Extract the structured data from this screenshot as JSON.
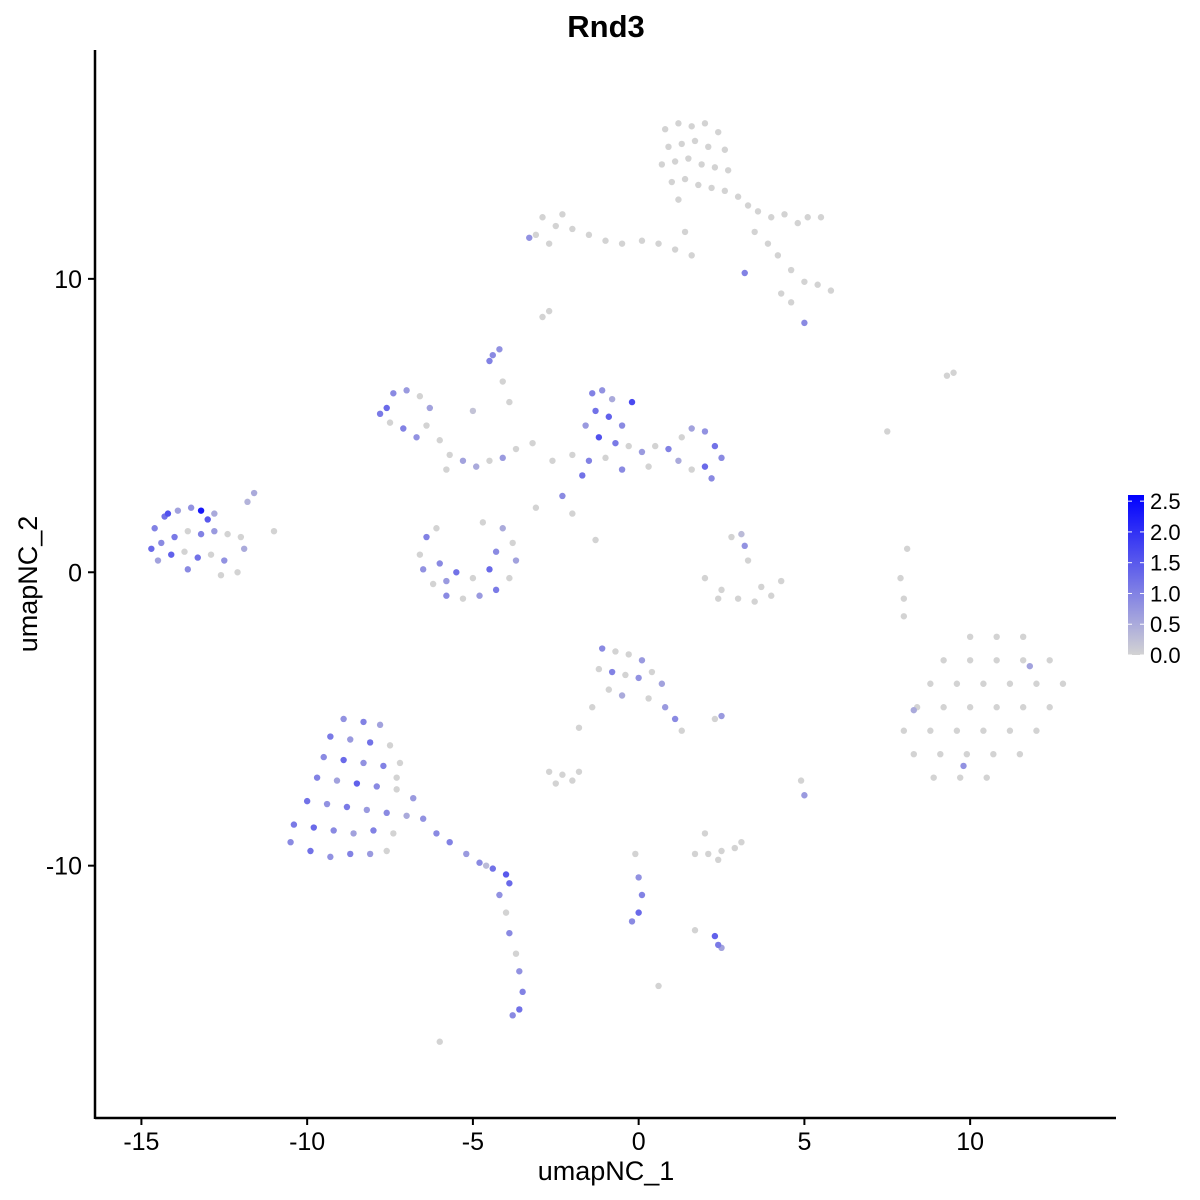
{
  "chart_data": {
    "type": "scatter",
    "title": "Rnd3",
    "xlabel": "umapNC_1",
    "ylabel": "umapNC_2",
    "xlim": [
      -16.4,
      14.4
    ],
    "ylim": [
      -18.6,
      17.8
    ],
    "x_ticks": [
      -15,
      -10,
      -5,
      0,
      5,
      10
    ],
    "x_tick_labels": [
      "-15",
      "-10",
      "-5",
      "0",
      "5",
      "10"
    ],
    "y_ticks": [
      -10,
      0,
      10
    ],
    "y_tick_labels": [
      "-10",
      "0",
      "10"
    ],
    "grid": false,
    "legend": {
      "placement": "right",
      "type": "colorbar",
      "range": [
        0,
        2.6
      ],
      "ticks": [
        0.0,
        0.5,
        1.0,
        1.5,
        2.0,
        2.5
      ],
      "tick_labels": [
        "0.0",
        "0.5",
        "1.0",
        "1.5",
        "2.0",
        "2.5"
      ],
      "low_color": "#d3d3d3",
      "high_color": "#0000ff"
    },
    "point_fields": [
      "umapNC_1",
      "umapNC_2",
      "expression"
    ],
    "points": [
      [
        0.8,
        15.1,
        0
      ],
      [
        1.2,
        15.3,
        0
      ],
      [
        1.6,
        15.2,
        0
      ],
      [
        2.0,
        15.3,
        0
      ],
      [
        2.4,
        15.0,
        0
      ],
      [
        0.9,
        14.5,
        0
      ],
      [
        1.3,
        14.6,
        0
      ],
      [
        1.7,
        14.7,
        0
      ],
      [
        2.1,
        14.5,
        0
      ],
      [
        2.6,
        14.4,
        0
      ],
      [
        0.7,
        13.9,
        0
      ],
      [
        1.1,
        14.0,
        0
      ],
      [
        1.5,
        14.1,
        0
      ],
      [
        1.9,
        13.9,
        0
      ],
      [
        2.3,
        13.8,
        0
      ],
      [
        2.7,
        13.7,
        0
      ],
      [
        1.0,
        13.3,
        0
      ],
      [
        1.4,
        13.4,
        0
      ],
      [
        1.8,
        13.2,
        0
      ],
      [
        2.2,
        13.1,
        0
      ],
      [
        2.6,
        13.0,
        0
      ],
      [
        3.0,
        12.8,
        0
      ],
      [
        1.2,
        12.7,
        0
      ],
      [
        3.3,
        12.5,
        0
      ],
      [
        3.6,
        12.3,
        0
      ],
      [
        4.0,
        12.1,
        0
      ],
      [
        4.4,
        12.2,
        0
      ],
      [
        4.8,
        11.9,
        0
      ],
      [
        5.1,
        12.1,
        0
      ],
      [
        5.5,
        12.1,
        0
      ],
      [
        3.5,
        11.6,
        0
      ],
      [
        3.9,
        11.2,
        0
      ],
      [
        4.2,
        10.8,
        0
      ],
      [
        4.6,
        10.3,
        0
      ],
      [
        5.0,
        9.9,
        0
      ],
      [
        5.4,
        9.8,
        0
      ],
      [
        5.8,
        9.6,
        0
      ],
      [
        4.3,
        9.5,
        0
      ],
      [
        4.6,
        9.2,
        0
      ],
      [
        1.4,
        11.6,
        0
      ],
      [
        1.1,
        11.0,
        0
      ],
      [
        1.6,
        10.8,
        0
      ],
      [
        0.6,
        11.2,
        0
      ],
      [
        0.1,
        11.3,
        0
      ],
      [
        -0.5,
        11.2,
        0
      ],
      [
        -1.0,
        11.3,
        0
      ],
      [
        -1.5,
        11.5,
        0
      ],
      [
        -2.0,
        11.7,
        0
      ],
      [
        -2.5,
        11.8,
        0
      ],
      [
        -2.9,
        12.1,
        0
      ],
      [
        -3.1,
        11.5,
        0
      ],
      [
        -2.7,
        11.2,
        0
      ],
      [
        -2.3,
        12.2,
        0
      ],
      [
        3.2,
        10.2,
        1.0
      ],
      [
        5.0,
        8.5,
        0.9
      ],
      [
        -3.3,
        11.4,
        0.8
      ],
      [
        -14.6,
        1.5,
        1.0
      ],
      [
        -14.3,
        1.9,
        1.2
      ],
      [
        -13.9,
        2.1,
        0.6
      ],
      [
        -13.5,
        2.2,
        0.8
      ],
      [
        -13.2,
        2.1,
        2.3
      ],
      [
        -12.8,
        2.0,
        0.5
      ],
      [
        -14.7,
        0.8,
        1.3
      ],
      [
        -14.4,
        1.0,
        0.9
      ],
      [
        -14.0,
        1.2,
        1.1
      ],
      [
        -13.6,
        1.4,
        0
      ],
      [
        -13.2,
        1.3,
        1.0
      ],
      [
        -12.8,
        1.4,
        0.7
      ],
      [
        -12.4,
        1.3,
        0
      ],
      [
        -14.5,
        0.4,
        0.6
      ],
      [
        -14.1,
        0.6,
        1.4
      ],
      [
        -13.7,
        0.7,
        0
      ],
      [
        -13.3,
        0.5,
        1.2
      ],
      [
        -12.9,
        0.6,
        0
      ],
      [
        -12.5,
        0.4,
        0.8
      ],
      [
        -12.1,
        0.0,
        0
      ],
      [
        -12.6,
        -0.1,
        0
      ],
      [
        -13.6,
        0.1,
        0.9
      ],
      [
        -11.9,
        0.8,
        0.5
      ],
      [
        -12.0,
        1.2,
        0
      ],
      [
        -11.6,
        2.7,
        0.5
      ],
      [
        -11.0,
        1.4,
        0
      ],
      [
        -11.8,
        2.4,
        0.4
      ],
      [
        -14.2,
        2.0,
        1.6
      ],
      [
        -13.0,
        1.8,
        1.5
      ],
      [
        -7.6,
        5.6,
        1.3
      ],
      [
        -7.4,
        6.1,
        0.9
      ],
      [
        -7.0,
        6.2,
        0.7
      ],
      [
        -6.6,
        6.0,
        0
      ],
      [
        -6.3,
        5.6,
        0.6
      ],
      [
        -6.4,
        5.0,
        0
      ],
      [
        -6.7,
        4.6,
        0.8
      ],
      [
        -7.1,
        4.9,
        1.0
      ],
      [
        -7.5,
        5.1,
        0
      ],
      [
        -7.8,
        5.4,
        1.1
      ],
      [
        -6.0,
        4.5,
        0
      ],
      [
        -5.7,
        4.0,
        0
      ],
      [
        -5.3,
        3.8,
        0.6
      ],
      [
        -4.9,
        3.6,
        0.5
      ],
      [
        -4.5,
        3.8,
        0
      ],
      [
        -4.1,
        3.9,
        0.7
      ],
      [
        -5.8,
        3.5,
        0
      ],
      [
        -3.7,
        4.2,
        0
      ],
      [
        -3.2,
        4.4,
        0
      ],
      [
        -4.4,
        7.4,
        0.9
      ],
      [
        -4.2,
        7.6,
        0.8
      ],
      [
        -4.1,
        6.5,
        0
      ],
      [
        -3.9,
        5.8,
        0
      ],
      [
        -5.0,
        5.5,
        0.2
      ],
      [
        -2.3,
        2.6,
        0.9
      ],
      [
        -3.1,
        2.2,
        0
      ],
      [
        -2.0,
        2.0,
        0
      ],
      [
        -1.3,
        1.1,
        0
      ],
      [
        -6.4,
        1.2,
        1.0
      ],
      [
        -6.6,
        0.6,
        0
      ],
      [
        -6.5,
        0.1,
        0.8
      ],
      [
        -6.2,
        -0.4,
        0
      ],
      [
        -5.8,
        -0.8,
        0.9
      ],
      [
        -5.3,
        -0.9,
        0
      ],
      [
        -4.8,
        -0.8,
        0.7
      ],
      [
        -4.3,
        -0.6,
        1.1
      ],
      [
        -3.9,
        -0.2,
        0
      ],
      [
        -3.7,
        0.4,
        0.6
      ],
      [
        -3.8,
        1.0,
        0
      ],
      [
        -4.1,
        1.5,
        0.5
      ],
      [
        -6.0,
        0.3,
        0.9
      ],
      [
        -5.5,
        0.0,
        1.2
      ],
      [
        -5.0,
        -0.2,
        0
      ],
      [
        -4.5,
        0.1,
        1.3
      ],
      [
        -5.8,
        -0.3,
        0.7
      ],
      [
        -4.3,
        0.7,
        0.9
      ],
      [
        -4.7,
        1.7,
        0
      ],
      [
        -6.1,
        1.5,
        0
      ],
      [
        -1.4,
        6.1,
        1.0
      ],
      [
        -1.1,
        6.2,
        0.8
      ],
      [
        -0.8,
        5.9,
        0.5
      ],
      [
        -1.3,
        5.5,
        1.2
      ],
      [
        -0.9,
        5.3,
        1.4
      ],
      [
        -0.5,
        5.0,
        0.9
      ],
      [
        -1.6,
        5.0,
        0.7
      ],
      [
        -1.2,
        4.6,
        1.6
      ],
      [
        -0.7,
        4.4,
        1.1
      ],
      [
        -0.3,
        4.3,
        0
      ],
      [
        0.1,
        4.1,
        0.7
      ],
      [
        0.5,
        4.3,
        0
      ],
      [
        0.9,
        4.2,
        1.0
      ],
      [
        1.3,
        4.6,
        0
      ],
      [
        1.6,
        4.9,
        0.6
      ],
      [
        2.0,
        4.8,
        0.8
      ],
      [
        2.3,
        4.3,
        1.2
      ],
      [
        2.5,
        3.9,
        0.9
      ],
      [
        2.0,
        3.6,
        1.3
      ],
      [
        1.6,
        3.5,
        0
      ],
      [
        1.2,
        3.8,
        0.5
      ],
      [
        -0.5,
        3.5,
        0.9
      ],
      [
        -1.0,
        3.9,
        0
      ],
      [
        -1.5,
        3.8,
        1.0
      ],
      [
        -2.0,
        4.0,
        0
      ],
      [
        -2.6,
        3.8,
        0
      ],
      [
        -1.7,
        3.3,
        1.2
      ],
      [
        0.3,
        3.6,
        0
      ],
      [
        -0.2,
        5.8,
        1.7
      ],
      [
        2.2,
        3.2,
        0.9
      ],
      [
        2.0,
        -0.2,
        0
      ],
      [
        2.5,
        -0.6,
        0
      ],
      [
        3.0,
        -0.9,
        0
      ],
      [
        3.5,
        -1.0,
        0
      ],
      [
        4.0,
        -0.8,
        0
      ],
      [
        4.3,
        -0.3,
        0
      ],
      [
        3.2,
        0.9,
        0.8
      ],
      [
        3.1,
        1.3,
        0.3
      ],
      [
        3.3,
        0.4,
        0
      ],
      [
        2.8,
        1.2,
        0
      ],
      [
        3.7,
        -0.5,
        0
      ],
      [
        2.4,
        -0.9,
        0
      ],
      [
        10.0,
        -2.2,
        0
      ],
      [
        10.8,
        -2.2,
        0
      ],
      [
        11.6,
        -2.2,
        0
      ],
      [
        9.2,
        -3.0,
        0
      ],
      [
        10.0,
        -3.0,
        0
      ],
      [
        10.8,
        -3.0,
        0
      ],
      [
        11.6,
        -3.0,
        0
      ],
      [
        12.4,
        -3.0,
        0
      ],
      [
        8.8,
        -3.8,
        0
      ],
      [
        9.6,
        -3.8,
        0
      ],
      [
        10.4,
        -3.8,
        0
      ],
      [
        11.2,
        -3.8,
        0
      ],
      [
        12.0,
        -3.8,
        0
      ],
      [
        12.8,
        -3.8,
        0
      ],
      [
        8.4,
        -4.6,
        0
      ],
      [
        9.2,
        -4.6,
        0
      ],
      [
        10.0,
        -4.6,
        0
      ],
      [
        10.8,
        -4.6,
        0
      ],
      [
        11.6,
        -4.6,
        0
      ],
      [
        12.4,
        -4.6,
        0
      ],
      [
        8.0,
        -5.4,
        0
      ],
      [
        8.8,
        -5.4,
        0
      ],
      [
        9.6,
        -5.4,
        0
      ],
      [
        10.4,
        -5.4,
        0
      ],
      [
        11.2,
        -5.4,
        0
      ],
      [
        12.0,
        -5.4,
        0
      ],
      [
        8.3,
        -6.2,
        0
      ],
      [
        9.1,
        -6.2,
        0
      ],
      [
        9.9,
        -6.2,
        0
      ],
      [
        10.7,
        -6.2,
        0
      ],
      [
        11.5,
        -6.2,
        0
      ],
      [
        8.9,
        -7.0,
        0
      ],
      [
        9.7,
        -7.0,
        0
      ],
      [
        10.5,
        -7.0,
        0
      ],
      [
        9.8,
        -6.6,
        0.8
      ],
      [
        8.3,
        -4.7,
        0.5
      ],
      [
        11.8,
        -3.2,
        0.6
      ],
      [
        -1.1,
        -2.6,
        0.9
      ],
      [
        -0.7,
        -2.7,
        0
      ],
      [
        -0.3,
        -2.8,
        0
      ],
      [
        0.1,
        -3.0,
        0.7
      ],
      [
        -1.2,
        -3.3,
        0
      ],
      [
        -0.8,
        -3.4,
        1.0
      ],
      [
        -0.4,
        -3.5,
        0
      ],
      [
        0.0,
        -3.6,
        0.8
      ],
      [
        0.4,
        -3.4,
        0
      ],
      [
        0.7,
        -3.8,
        0.6
      ],
      [
        -0.9,
        -4.0,
        0
      ],
      [
        -0.5,
        -4.2,
        0.5
      ],
      [
        0.3,
        -4.3,
        0
      ],
      [
        0.8,
        -4.6,
        0.7
      ],
      [
        1.1,
        -5.0,
        0.9
      ],
      [
        1.3,
        -5.4,
        0
      ],
      [
        -1.4,
        -4.6,
        0
      ],
      [
        -1.8,
        -5.3,
        0
      ],
      [
        2.5,
        -4.9,
        0.7
      ],
      [
        2.3,
        -5.0,
        0
      ],
      [
        -8.9,
        -5.0,
        0.8
      ],
      [
        -8.3,
        -5.1,
        1.0
      ],
      [
        -7.8,
        -5.2,
        0.6
      ],
      [
        -9.3,
        -5.6,
        1.1
      ],
      [
        -8.7,
        -5.7,
        0.7
      ],
      [
        -8.1,
        -5.8,
        1.2
      ],
      [
        -7.5,
        -5.9,
        0
      ],
      [
        -9.5,
        -6.3,
        0.9
      ],
      [
        -8.9,
        -6.4,
        1.3
      ],
      [
        -8.3,
        -6.5,
        0.8
      ],
      [
        -7.7,
        -6.6,
        1.0
      ],
      [
        -7.2,
        -6.5,
        0
      ],
      [
        -9.7,
        -7.0,
        1.0
      ],
      [
        -9.1,
        -7.1,
        0.6
      ],
      [
        -8.5,
        -7.2,
        1.4
      ],
      [
        -7.9,
        -7.3,
        0.9
      ],
      [
        -7.3,
        -7.4,
        0
      ],
      [
        -6.8,
        -7.7,
        0.7
      ],
      [
        -10.0,
        -7.8,
        1.2
      ],
      [
        -9.4,
        -7.9,
        0.8
      ],
      [
        -8.8,
        -8.0,
        1.1
      ],
      [
        -8.2,
        -8.1,
        0.7
      ],
      [
        -7.6,
        -8.2,
        0.9
      ],
      [
        -7.0,
        -8.3,
        0.5
      ],
      [
        -10.4,
        -8.6,
        1.1
      ],
      [
        -9.8,
        -8.7,
        1.3
      ],
      [
        -9.2,
        -8.8,
        0.9
      ],
      [
        -8.6,
        -8.9,
        0.6
      ],
      [
        -8.0,
        -8.8,
        1.0
      ],
      [
        -7.4,
        -8.9,
        0
      ],
      [
        -10.5,
        -9.2,
        0.9
      ],
      [
        -9.9,
        -9.5,
        1.2
      ],
      [
        -9.3,
        -9.7,
        0.8
      ],
      [
        -8.7,
        -9.6,
        1.0
      ],
      [
        -8.1,
        -9.6,
        0.7
      ],
      [
        -7.6,
        -9.5,
        0
      ],
      [
        -6.5,
        -8.4,
        0.8
      ],
      [
        -6.1,
        -8.9,
        0.9
      ],
      [
        -5.7,
        -9.2,
        1.0
      ],
      [
        -5.2,
        -9.6,
        0.7
      ],
      [
        -4.8,
        -9.9,
        0.9
      ],
      [
        -4.4,
        -10.1,
        1.2
      ],
      [
        -4.0,
        -10.3,
        1.5
      ],
      [
        -3.9,
        -10.6,
        1.3
      ],
      [
        -4.6,
        -10.0,
        0.3
      ],
      [
        -4.2,
        -11.0,
        0.8
      ],
      [
        -4.0,
        -11.6,
        0
      ],
      [
        -3.9,
        -12.3,
        0.9
      ],
      [
        -3.7,
        -13.0,
        0
      ],
      [
        -3.6,
        -13.6,
        0.8
      ],
      [
        -3.5,
        -14.3,
        1.0
      ],
      [
        -3.6,
        -14.9,
        1.2
      ],
      [
        -3.8,
        -15.1,
        0.9
      ],
      [
        -6.0,
        -16.0,
        0
      ],
      [
        -7.3,
        -7.0,
        0
      ],
      [
        -2.7,
        -6.8,
        0
      ],
      [
        -2.3,
        -6.9,
        0
      ],
      [
        -2.0,
        -7.1,
        0
      ],
      [
        -1.8,
        -6.8,
        0
      ],
      [
        -2.5,
        -7.2,
        0
      ],
      [
        1.7,
        -9.6,
        0
      ],
      [
        2.1,
        -9.6,
        0
      ],
      [
        2.5,
        -9.5,
        0
      ],
      [
        2.9,
        -9.4,
        0
      ],
      [
        3.1,
        -9.2,
        0
      ],
      [
        2.0,
        -8.9,
        0
      ],
      [
        2.4,
        -9.8,
        0
      ],
      [
        -0.1,
        -9.6,
        0
      ],
      [
        0.0,
        -10.4,
        0.8
      ],
      [
        0.1,
        -11.0,
        1.0
      ],
      [
        0.0,
        -11.6,
        1.3
      ],
      [
        -0.2,
        -11.9,
        0.9
      ],
      [
        1.7,
        -12.2,
        0
      ],
      [
        2.3,
        -12.4,
        1.4
      ],
      [
        2.4,
        -12.7,
        1.1
      ],
      [
        2.5,
        -12.8,
        0.6
      ],
      [
        -2.7,
        8.9,
        0
      ],
      [
        -2.9,
        8.7,
        0
      ],
      [
        -4.5,
        7.2,
        1.0
      ],
      [
        0.6,
        -14.1,
        0
      ],
      [
        9.3,
        6.7,
        0
      ],
      [
        9.5,
        6.8,
        0
      ],
      [
        7.5,
        4.8,
        0
      ],
      [
        7.9,
        -0.2,
        0
      ],
      [
        8.0,
        -0.9,
        0
      ],
      [
        8.1,
        0.8,
        0
      ],
      [
        8.0,
        -1.5,
        0
      ],
      [
        4.9,
        -7.1,
        0
      ],
      [
        5.0,
        -7.6,
        0.7
      ]
    ]
  }
}
